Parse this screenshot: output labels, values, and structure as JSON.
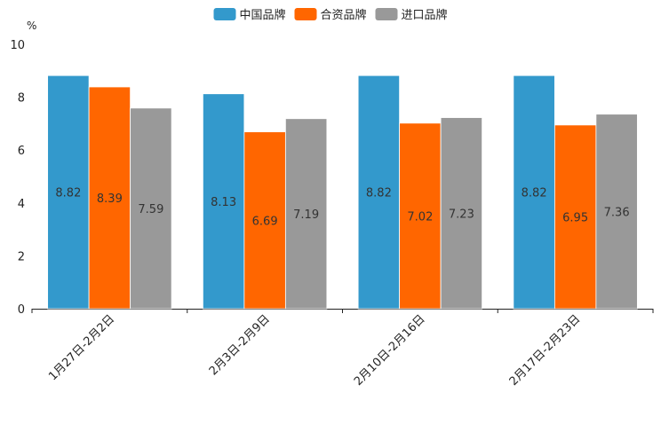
{
  "chart_data": {
    "type": "bar",
    "title": "",
    "xlabel": "",
    "ylabel": "%",
    "ylim": [
      0,
      10
    ],
    "yticks": [
      0,
      2,
      4,
      6,
      8,
      10
    ],
    "categories": [
      "1月27日-2月2日",
      "2月3日-2月9日",
      "2月10日-2月16日",
      "2月17日-2月23日"
    ],
    "series": [
      {
        "name": "中国品牌",
        "color": "#3399cc",
        "values": [
          8.82,
          8.13,
          8.82,
          8.82
        ]
      },
      {
        "name": "合资品牌",
        "color": "#ff6600",
        "values": [
          8.39,
          6.69,
          7.02,
          6.95
        ]
      },
      {
        "name": "进口品牌",
        "color": "#999999",
        "values": [
          7.59,
          7.19,
          7.23,
          7.36
        ]
      }
    ],
    "legend_position": "top-center",
    "grid": false,
    "data_labels": true
  }
}
